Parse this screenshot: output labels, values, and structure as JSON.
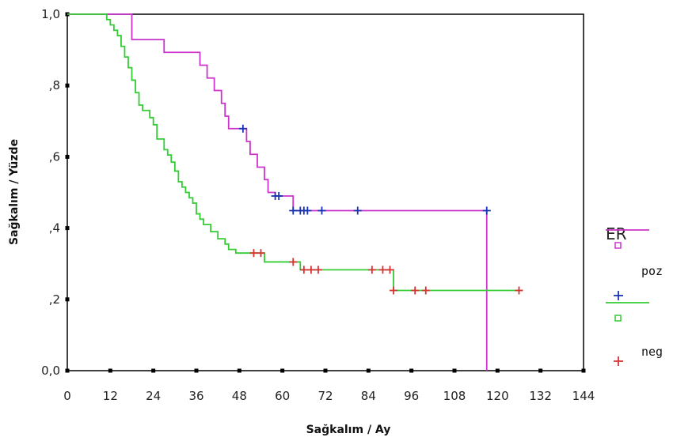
{
  "chart_data": {
    "type": "line",
    "step": true,
    "xlabel": "Sağkalım / Ay",
    "ylabel": "Sağkalım / Yüzde",
    "xlim": [
      0,
      144
    ],
    "ylim": [
      0,
      1
    ],
    "x_ticks": [
      0,
      12,
      24,
      36,
      48,
      60,
      72,
      84,
      96,
      108,
      120,
      132,
      144
    ],
    "x_tick_labels": [
      "0",
      "12",
      "24",
      "36",
      "48",
      "60",
      "72",
      "84",
      "96",
      "108",
      "120",
      "132",
      "144"
    ],
    "y_ticks": [
      0,
      0.2,
      0.4,
      0.6,
      0.8,
      1.0
    ],
    "y_tick_labels": [
      "0,0",
      ",2",
      ",4",
      ",6",
      ",8",
      "1,0"
    ],
    "legend": {
      "title": "ER",
      "placement": "right",
      "entries": [
        {
          "label": "poz",
          "symbol": "line-square",
          "color": "#cc33cc"
        },
        {
          "label": "",
          "symbol": "plus",
          "color": "#1a33b3",
          "censor_for": "poz"
        },
        {
          "label": "",
          "symbol": "line-square",
          "color": "#33cc33"
        },
        {
          "label": "neg",
          "symbol": "plus",
          "color": "#d63333",
          "censor_for": "neg"
        }
      ]
    },
    "series": [
      {
        "name": "poz",
        "color": "#cc33cc",
        "censor_color": "#1a33b3",
        "steps": [
          [
            0,
            1.0
          ],
          [
            18,
            0.929
          ],
          [
            27,
            0.893
          ],
          [
            37,
            0.857
          ],
          [
            39,
            0.821
          ],
          [
            41,
            0.786
          ],
          [
            43,
            0.75
          ],
          [
            44,
            0.714
          ],
          [
            45,
            0.679
          ],
          [
            50,
            0.643
          ],
          [
            51,
            0.607
          ],
          [
            53,
            0.571
          ],
          [
            55,
            0.536
          ],
          [
            56,
            0.5
          ],
          [
            58,
            0.49
          ],
          [
            63,
            0.449
          ],
          [
            117,
            0.0
          ]
        ],
        "end_x": 117,
        "censored": [
          [
            49,
            0.679
          ],
          [
            58,
            0.49
          ],
          [
            59,
            0.49
          ],
          [
            63,
            0.449
          ],
          [
            65,
            0.449
          ],
          [
            66,
            0.449
          ],
          [
            67,
            0.449
          ],
          [
            71,
            0.449
          ],
          [
            81,
            0.449
          ],
          [
            117,
            0.449
          ]
        ]
      },
      {
        "name": "neg",
        "color": "#33cc33",
        "censor_color": "#d63333",
        "steps": [
          [
            0,
            1.0
          ],
          [
            11,
            0.985
          ],
          [
            12,
            0.97
          ],
          [
            13,
            0.955
          ],
          [
            14,
            0.94
          ],
          [
            15,
            0.91
          ],
          [
            16,
            0.88
          ],
          [
            17,
            0.85
          ],
          [
            18,
            0.815
          ],
          [
            19,
            0.78
          ],
          [
            20,
            0.745
          ],
          [
            21,
            0.73
          ],
          [
            23,
            0.71
          ],
          [
            24,
            0.69
          ],
          [
            25,
            0.65
          ],
          [
            27,
            0.62
          ],
          [
            28,
            0.605
          ],
          [
            29,
            0.585
          ],
          [
            30,
            0.56
          ],
          [
            31,
            0.53
          ],
          [
            32,
            0.515
          ],
          [
            33,
            0.5
          ],
          [
            34,
            0.485
          ],
          [
            35,
            0.47
          ],
          [
            36,
            0.44
          ],
          [
            37,
            0.425
          ],
          [
            38,
            0.41
          ],
          [
            40,
            0.39
          ],
          [
            42,
            0.37
          ],
          [
            44,
            0.355
          ],
          [
            45,
            0.34
          ],
          [
            47,
            0.33
          ],
          [
            55,
            0.305
          ],
          [
            65,
            0.283
          ],
          [
            91,
            0.225
          ]
        ],
        "end_x": 127,
        "censored": [
          [
            52,
            0.33
          ],
          [
            54,
            0.33
          ],
          [
            63,
            0.305
          ],
          [
            66,
            0.283
          ],
          [
            68,
            0.283
          ],
          [
            70,
            0.283
          ],
          [
            85,
            0.283
          ],
          [
            88,
            0.283
          ],
          [
            90,
            0.283
          ],
          [
            91,
            0.225
          ],
          [
            97,
            0.225
          ],
          [
            100,
            0.225
          ],
          [
            126,
            0.225
          ]
        ]
      }
    ]
  }
}
